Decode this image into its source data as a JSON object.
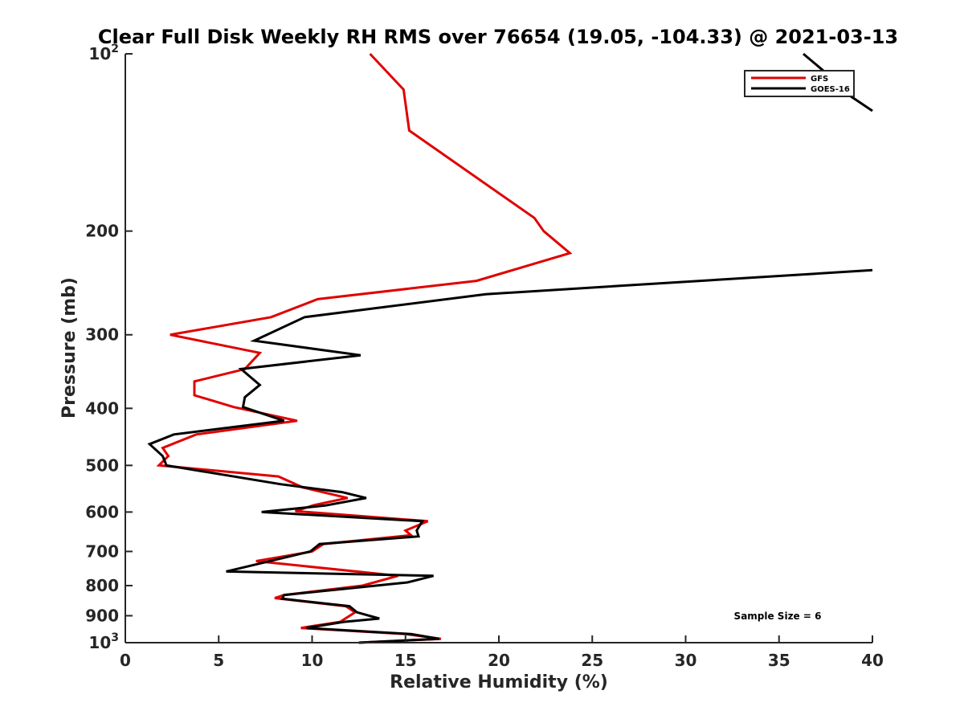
{
  "chart_data": {
    "type": "line",
    "title": "Clear Full Disk Weekly RH RMS over 76654 (19.05, -104.33) @ 2021-03-13",
    "xlabel": "Relative Humidity (%)",
    "ylabel": "Pressure (mb)",
    "xlim": [
      0,
      40
    ],
    "ylim": [
      100,
      1000
    ],
    "yscale": "log",
    "y_reversed": true,
    "xticks": [
      0,
      5,
      10,
      15,
      20,
      25,
      30,
      35,
      40
    ],
    "xtick_labels": [
      "0",
      "5",
      "10",
      "15",
      "20",
      "25",
      "30",
      "35",
      "40"
    ],
    "yticks": [
      100,
      200,
      300,
      400,
      500,
      600,
      700,
      800,
      900,
      1000
    ],
    "ytick_labels": [
      {
        "base": "10",
        "exp": "2"
      },
      {
        "base": "200",
        "exp": ""
      },
      {
        "base": "300",
        "exp": ""
      },
      {
        "base": "400",
        "exp": ""
      },
      {
        "base": "500",
        "exp": ""
      },
      {
        "base": "600",
        "exp": ""
      },
      {
        "base": "700",
        "exp": ""
      },
      {
        "base": "800",
        "exp": ""
      },
      {
        "base": "900",
        "exp": ""
      },
      {
        "base": "10",
        "exp": "3"
      }
    ],
    "legend_position": "top-right",
    "annotation": "Sample Size = 6",
    "series": [
      {
        "name": "GFS",
        "color": "#e00000",
        "points": [
          [
            13.1,
            100
          ],
          [
            14.9,
            115
          ],
          [
            15.2,
            135
          ],
          [
            21.9,
            190
          ],
          [
            22.4,
            200
          ],
          [
            23.8,
            218
          ],
          [
            18.8,
            243
          ],
          [
            10.3,
            261
          ],
          [
            7.8,
            280
          ],
          [
            2.4,
            300
          ],
          [
            7.2,
            322
          ],
          [
            6.4,
            343
          ],
          [
            3.7,
            360
          ],
          [
            3.7,
            380
          ],
          [
            5.8,
            398
          ],
          [
            9.2,
            420
          ],
          [
            3.8,
            443
          ],
          [
            2.0,
            467
          ],
          [
            2.3,
            482
          ],
          [
            1.8,
            500
          ],
          [
            8.2,
            522
          ],
          [
            9.5,
            545
          ],
          [
            11.9,
            568
          ],
          [
            10.1,
            584
          ],
          [
            9.1,
            598
          ],
          [
            16.2,
            622
          ],
          [
            15.0,
            645
          ],
          [
            15.3,
            657
          ],
          [
            10.6,
            680
          ],
          [
            10.0,
            700
          ],
          [
            7.0,
            727
          ],
          [
            14.6,
            770
          ],
          [
            12.7,
            800
          ],
          [
            8.5,
            830
          ],
          [
            8.0,
            840
          ],
          [
            11.8,
            867
          ],
          [
            12.3,
            888
          ],
          [
            11.5,
            922
          ],
          [
            9.4,
            944
          ],
          [
            15.0,
            967
          ],
          [
            16.9,
            985
          ],
          [
            12.5,
            1000
          ]
        ]
      },
      {
        "name": "GOES-16",
        "color": "#000000",
        "points": [
          [
            40,
            233
          ],
          [
            19.3,
            256
          ],
          [
            9.6,
            280
          ],
          [
            6.9,
            307
          ],
          [
            12.6,
            325
          ],
          [
            6.2,
            343
          ],
          [
            7.2,
            365
          ],
          [
            6.4,
            383
          ],
          [
            6.3,
            398
          ],
          [
            8.5,
            420
          ],
          [
            2.6,
            443
          ],
          [
            1.3,
            460
          ],
          [
            2.0,
            482
          ],
          [
            2.2,
            500
          ],
          [
            8.3,
            538
          ],
          [
            11.6,
            555
          ],
          [
            12.9,
            568
          ],
          [
            10.7,
            585
          ],
          [
            7.3,
            600
          ],
          [
            15.9,
            622
          ],
          [
            15.6,
            645
          ],
          [
            15.7,
            660
          ],
          [
            10.4,
            680
          ],
          [
            9.9,
            700
          ],
          [
            5.4,
            757
          ],
          [
            16.5,
            770
          ],
          [
            15.1,
            790
          ],
          [
            8.5,
            830
          ],
          [
            8.4,
            842
          ],
          [
            12.0,
            867
          ],
          [
            12.4,
            888
          ],
          [
            13.6,
            910
          ],
          [
            11.7,
            922
          ],
          [
            9.7,
            944
          ],
          [
            15.3,
            967
          ],
          [
            16.8,
            985
          ],
          [
            12.5,
            1000
          ]
        ]
      }
    ],
    "offplot_segment": {
      "color": "#000000",
      "points": [
        [
          40,
          125
        ],
        [
          38.3,
          115
        ],
        [
          38.2,
          114
        ]
      ]
    }
  }
}
